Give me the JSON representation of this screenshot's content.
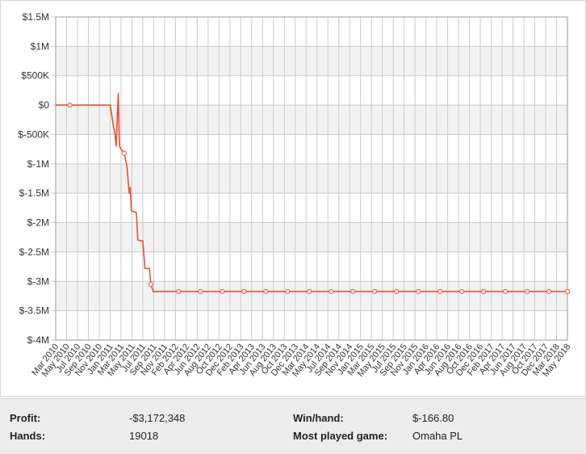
{
  "chart_data": {
    "type": "line",
    "title": "",
    "xlabel": "",
    "ylabel": "",
    "ylim": [
      -4000000,
      1500000
    ],
    "y_ticks": [
      {
        "value": 1500000,
        "label": "$1.5M"
      },
      {
        "value": 1000000,
        "label": "$1M"
      },
      {
        "value": 500000,
        "label": "$500K"
      },
      {
        "value": 0,
        "label": "$0"
      },
      {
        "value": -500000,
        "label": "$-500K"
      },
      {
        "value": -1000000,
        "label": "$-1M"
      },
      {
        "value": -1500000,
        "label": "$-1.5M"
      },
      {
        "value": -2000000,
        "label": "$-2M"
      },
      {
        "value": -2500000,
        "label": "$-2.5M"
      },
      {
        "value": -3000000,
        "label": "$-3M"
      },
      {
        "value": -3500000,
        "label": "$-3.5M"
      },
      {
        "value": -4000000,
        "label": "$-4M"
      }
    ],
    "x_ticks": [
      "Mar 2010",
      "May 2010",
      "Jul 2010",
      "Sep 2010",
      "Nov 2010",
      "Jan 2011",
      "Mar 2011",
      "May 2011",
      "Jul 2011",
      "Sep 2011",
      "Nov 2011",
      "Feb 2012",
      "Apr 2012",
      "Jun 2012",
      "Aug 2012",
      "Oct 2012",
      "Dec 2012",
      "Feb 2013",
      "Apr 2013",
      "Jun 2013",
      "Aug 2013",
      "Oct 2013",
      "Dec 2013",
      "Mar 2014",
      "May 2014",
      "Jul 2014",
      "Sep 2014",
      "Nov 2014",
      "Jan 2015",
      "Mar 2015",
      "May 2015",
      "Jul 2015",
      "Sep 2015",
      "Nov 2015",
      "Jan 2016",
      "Apr 2016",
      "Jun 2016",
      "Aug 2016",
      "Oct 2016",
      "Dec 2016",
      "Feb 2017",
      "Apr 2017",
      "Jun 2017",
      "Aug 2017",
      "Oct 2017",
      "Dec 2017",
      "Mar 2018",
      "May 2018"
    ],
    "x_range_index": [
      0,
      47
    ],
    "grid": true,
    "line_color": "#e8522d",
    "marker_fill": "#ffffff",
    "series": [
      {
        "values": [
          [
            0,
            0
          ],
          [
            3.8,
            0
          ],
          [
            5.0,
            0
          ],
          [
            5.3,
            -350000
          ],
          [
            5.45,
            -500000
          ],
          [
            5.55,
            -700000
          ],
          [
            5.75,
            200000
          ],
          [
            5.85,
            -700000
          ],
          [
            6.0,
            -750000
          ],
          [
            6.3,
            -820000
          ],
          [
            6.55,
            -1050000
          ],
          [
            6.75,
            -1500000
          ],
          [
            6.85,
            -1400000
          ],
          [
            6.95,
            -1800000
          ],
          [
            7.4,
            -1830000
          ],
          [
            7.55,
            -2300000
          ],
          [
            8.0,
            -2310000
          ],
          [
            8.2,
            -2780000
          ],
          [
            8.6,
            -2780000
          ],
          [
            8.75,
            -3050000
          ],
          [
            8.95,
            -3172348
          ],
          [
            47,
            -3172348
          ]
        ],
        "markers": [
          [
            1.3,
            0
          ],
          [
            6.3,
            -820000
          ],
          [
            8.75,
            -3050000
          ],
          [
            11.3,
            -3172348
          ],
          [
            13.3,
            -3172348
          ],
          [
            15.3,
            -3172348
          ],
          [
            17.3,
            -3172348
          ],
          [
            19.3,
            -3172348
          ],
          [
            21.3,
            -3172348
          ],
          [
            23.3,
            -3172348
          ],
          [
            25.3,
            -3172348
          ],
          [
            27.3,
            -3172348
          ],
          [
            29.3,
            -3172348
          ],
          [
            31.3,
            -3172348
          ],
          [
            33.3,
            -3172348
          ],
          [
            35.3,
            -3172348
          ],
          [
            37.3,
            -3172348
          ],
          [
            39.3,
            -3172348
          ],
          [
            41.3,
            -3172348
          ],
          [
            43.3,
            -3172348
          ],
          [
            45.3,
            -3172348
          ],
          [
            47,
            -3172348
          ]
        ]
      }
    ]
  },
  "stats": {
    "profit_label": "Profit:",
    "profit_value": "-$3,172,348",
    "hands_label": "Hands:",
    "hands_value": "19018",
    "winhand_label": "Win/hand:",
    "winhand_value": "$-166.80",
    "game_label": "Most played game:",
    "game_value": "Omaha PL"
  }
}
